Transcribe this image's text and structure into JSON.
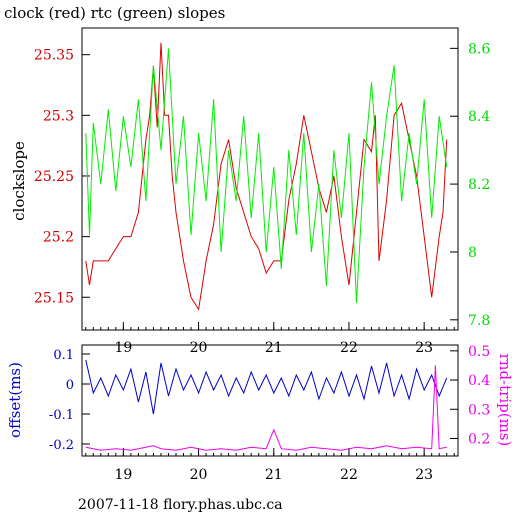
{
  "chart_data": [
    {
      "type": "line",
      "title": "clock (red) rtc (green) slopes",
      "ylabel": "clockslope",
      "xlim": [
        18.45,
        23.45
      ],
      "x_ticks": [
        "19",
        "20",
        "21",
        "22",
        "23"
      ],
      "left_axis": {
        "ylim": [
          25.123,
          25.372
        ],
        "ticks": [
          "25.15",
          "25.2",
          "25.25",
          "25.3",
          "25.35"
        ],
        "color": "#cc0000"
      },
      "right_axis": {
        "ylim": [
          7.77,
          8.66
        ],
        "ticks": [
          "7.8",
          "8",
          "8.2",
          "8.4",
          "8.6"
        ],
        "color": "#00dd00"
      },
      "series": [
        {
          "color": "#dd0000",
          "axis": "left",
          "x": [
            18.5,
            18.55,
            18.6,
            18.7,
            18.8,
            18.9,
            19.0,
            19.1,
            19.2,
            19.3,
            19.35,
            19.4,
            19.45,
            19.5,
            19.55,
            19.6,
            19.65,
            19.7,
            19.8,
            19.9,
            20.0,
            20.1,
            20.2,
            20.3,
            20.4,
            20.5,
            20.6,
            20.7,
            20.8,
            20.9,
            21.0,
            21.1,
            21.2,
            21.3,
            21.4,
            21.5,
            21.6,
            21.7,
            21.8,
            21.9,
            22.0,
            22.1,
            22.2,
            22.3,
            22.35,
            22.4,
            22.5,
            22.6,
            22.7,
            22.8,
            22.9,
            23.0,
            23.1,
            23.2,
            23.25,
            23.3
          ],
          "y": [
            25.18,
            25.16,
            25.18,
            25.18,
            25.18,
            25.19,
            25.2,
            25.2,
            25.22,
            25.28,
            25.3,
            25.34,
            25.29,
            25.36,
            25.3,
            25.3,
            25.25,
            25.22,
            25.18,
            25.15,
            25.14,
            25.18,
            25.21,
            25.26,
            25.28,
            25.24,
            25.22,
            25.2,
            25.19,
            25.17,
            25.18,
            25.18,
            25.23,
            25.26,
            25.3,
            25.27,
            25.24,
            25.22,
            25.25,
            25.2,
            25.16,
            25.22,
            25.28,
            25.27,
            25.3,
            25.18,
            25.23,
            25.3,
            25.31,
            25.28,
            25.25,
            25.2,
            25.15,
            25.2,
            25.22,
            25.28
          ]
        },
        {
          "color": "#00ee00",
          "axis": "right",
          "x": [
            18.5,
            18.55,
            18.6,
            18.7,
            18.8,
            18.9,
            19.0,
            19.1,
            19.2,
            19.3,
            19.4,
            19.5,
            19.6,
            19.7,
            19.8,
            19.9,
            20.0,
            20.1,
            20.2,
            20.3,
            20.4,
            20.5,
            20.6,
            20.7,
            20.8,
            20.9,
            21.0,
            21.1,
            21.2,
            21.3,
            21.4,
            21.5,
            21.6,
            21.7,
            21.8,
            21.9,
            22.0,
            22.1,
            22.2,
            22.3,
            22.4,
            22.5,
            22.6,
            22.7,
            22.8,
            22.9,
            23.0,
            23.1,
            23.2,
            23.3
          ],
          "y": [
            8.35,
            8.05,
            8.38,
            8.2,
            8.42,
            8.18,
            8.4,
            8.25,
            8.45,
            8.15,
            8.55,
            8.3,
            8.6,
            8.2,
            8.4,
            8.05,
            8.35,
            8.15,
            8.45,
            8.0,
            8.3,
            8.15,
            8.4,
            8.1,
            8.35,
            8.0,
            8.25,
            7.95,
            8.3,
            8.05,
            8.35,
            8.0,
            8.2,
            7.9,
            8.3,
            8.1,
            8.35,
            7.85,
            8.25,
            8.5,
            8.2,
            8.4,
            8.55,
            8.15,
            8.35,
            8.2,
            8.45,
            8.1,
            8.4,
            8.25
          ]
        }
      ]
    },
    {
      "type": "line",
      "ylabel": "offset(ms)",
      "y2label": "rnd-trip(ms)",
      "xlim": [
        18.45,
        23.45
      ],
      "x_ticks": [
        "19",
        "20",
        "21",
        "22",
        "23"
      ],
      "left_axis": {
        "ylim": [
          -0.24,
          0.13
        ],
        "ticks": [
          "0.1",
          "0",
          "-0.1",
          "-0.2"
        ],
        "color": "#0000cc"
      },
      "right_axis": {
        "ylim": [
          0.14,
          0.52
        ],
        "ticks": [
          "0.5",
          "0.4",
          "0.3",
          "0.2"
        ],
        "color": "#ee00ee"
      },
      "series": [
        {
          "color": "#0000cc",
          "axis": "left",
          "x": [
            18.5,
            18.6,
            18.7,
            18.8,
            18.9,
            19.0,
            19.1,
            19.2,
            19.3,
            19.4,
            19.5,
            19.6,
            19.7,
            19.8,
            19.9,
            20.0,
            20.1,
            20.2,
            20.3,
            20.4,
            20.5,
            20.6,
            20.7,
            20.8,
            20.9,
            21.0,
            21.1,
            21.2,
            21.3,
            21.4,
            21.5,
            21.6,
            21.7,
            21.8,
            21.9,
            22.0,
            22.1,
            22.2,
            22.3,
            22.4,
            22.5,
            22.6,
            22.7,
            22.8,
            22.9,
            23.0,
            23.1,
            23.2,
            23.3
          ],
          "y": [
            0.08,
            -0.03,
            0.02,
            -0.04,
            0.03,
            -0.02,
            0.05,
            -0.06,
            0.04,
            -0.1,
            0.07,
            -0.04,
            0.05,
            -0.02,
            0.03,
            -0.03,
            0.04,
            -0.02,
            0.03,
            -0.04,
            0.02,
            -0.03,
            0.04,
            -0.02,
            0.03,
            -0.03,
            0.02,
            -0.04,
            0.03,
            -0.02,
            0.04,
            -0.05,
            0.02,
            -0.03,
            0.04,
            -0.04,
            0.03,
            -0.05,
            0.06,
            -0.03,
            0.07,
            -0.04,
            0.03,
            -0.05,
            0.05,
            -0.02,
            0.03,
            -0.04,
            0.02
          ]
        },
        {
          "color": "#ee00ee",
          "axis": "right",
          "x": [
            18.5,
            18.7,
            18.9,
            19.1,
            19.3,
            19.4,
            19.5,
            19.7,
            19.9,
            20.1,
            20.3,
            20.5,
            20.7,
            20.9,
            21.0,
            21.1,
            21.3,
            21.5,
            21.7,
            21.9,
            22.1,
            22.3,
            22.5,
            22.7,
            22.9,
            23.1,
            23.15,
            23.2,
            23.3
          ],
          "y": [
            0.17,
            0.16,
            0.165,
            0.16,
            0.17,
            0.175,
            0.165,
            0.16,
            0.17,
            0.16,
            0.165,
            0.16,
            0.17,
            0.165,
            0.23,
            0.165,
            0.16,
            0.17,
            0.165,
            0.16,
            0.17,
            0.165,
            0.175,
            0.165,
            0.17,
            0.165,
            0.45,
            0.165,
            0.17
          ]
        }
      ]
    }
  ],
  "footer": "2007-11-18 flory.phas.ubc.ca"
}
